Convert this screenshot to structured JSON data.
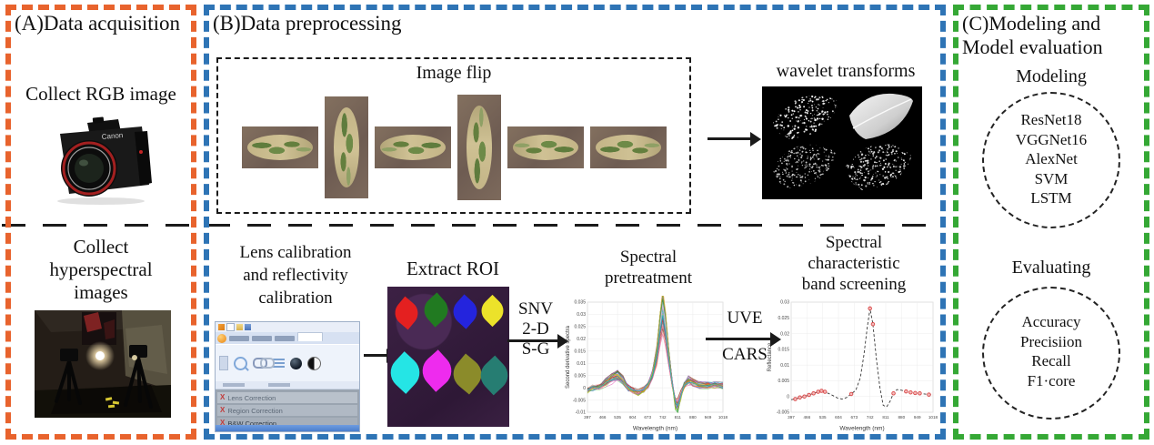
{
  "panel_a": {
    "title": "(A)Data acquisition",
    "rgb_label": "Collect RGB image",
    "camera_brand": "Canon",
    "hyper_label_lines": [
      "Collect",
      "hyperspectral",
      "images"
    ]
  },
  "panel_b": {
    "title": "(B)Data preprocessing",
    "image_flip_label": "Image flip",
    "wavelet_label": "wavelet transforms",
    "lens_cal_lines": [
      "Lens calibration",
      "and reflectivity",
      "calibration"
    ],
    "software": {
      "items": [
        "Lens Correction",
        "Region Correction",
        "B&W Correction"
      ]
    },
    "extract_roi_label": "Extract ROI",
    "snv_lines": [
      "SNV",
      "2-D",
      "S-G"
    ],
    "pretreat_title_lines": [
      "Spectral",
      "pretreatment"
    ],
    "uve": "UVE",
    "cars": "CARS",
    "band_title_lines": [
      "Spectral",
      "characteristic",
      "band screening"
    ]
  },
  "panel_c": {
    "title_lines": [
      "(C)Modeling and",
      "Model evaluation"
    ],
    "modeling_label": "Modeling",
    "models": [
      "ResNet18",
      "VGGNet16",
      "AlexNet",
      "SVM",
      "LSTM"
    ],
    "evaluating_label": "Evaluating",
    "metrics": [
      "Accuracy",
      "Precisiion",
      "Recall",
      "F1·core"
    ]
  },
  "colors": {
    "panel_a_border": "#e8632d",
    "panel_b_border": "#2e74b5",
    "panel_c_border": "#35a835",
    "arrow": "#1a1a1a"
  },
  "chart_data": [
    {
      "type": "line",
      "title": "Spectral pretreatment",
      "xlabel": "Wavelength (nm)",
      "ylabel": "Second derivative spectra",
      "xlim": [
        397,
        1018
      ],
      "ylim": [
        -0.01,
        0.035
      ],
      "x_ticks": [
        397,
        466,
        535,
        604,
        673,
        742,
        811,
        880,
        949,
        1018
      ],
      "y_ticks": [
        0.035,
        0.03,
        0.025,
        0.02,
        0.015,
        0.01,
        0.005,
        0,
        -0.005,
        -0.01
      ],
      "y_tick_labels": [
        "0.035",
        "0.03",
        "0.025",
        "0.02",
        "0.015",
        "0.01",
        "0.005",
        "0",
        "-0.005",
        "-0.01"
      ],
      "grid": true,
      "legend": false,
      "base_x": [
        397,
        420,
        450,
        480,
        510,
        535,
        560,
        585,
        604,
        630,
        655,
        675,
        695,
        715,
        730,
        742,
        755,
        770,
        785,
        800,
        811,
        825,
        840,
        860,
        880,
        910,
        949,
        980,
        1018
      ],
      "base_y": [
        -0.001,
        0.0,
        0.0,
        0.002,
        0.004,
        0.005,
        0.003,
        0.0,
        -0.001,
        -0.002,
        -0.001,
        0.001,
        0.005,
        0.013,
        0.024,
        0.031,
        0.024,
        0.012,
        0.002,
        -0.006,
        -0.007,
        -0.003,
        0.001,
        0.003,
        0.002,
        0.001,
        0.001,
        0.001,
        0.001
      ],
      "n_lines": 40,
      "line_colors": [
        "#d62728",
        "#1f77b4",
        "#2ca02c",
        "#ff7f0e",
        "#9467bd",
        "#8c564b",
        "#e377c2",
        "#7f7f7f",
        "#bcbd22",
        "#17becf",
        "#aec7e8",
        "#ffbb78",
        "#98df8a",
        "#ff9896",
        "#c5b0d5"
      ]
    },
    {
      "type": "line",
      "title": "Spectral characteristic band screening",
      "xlabel": "Wavelength (nm)",
      "ylabel": "Reflectance",
      "xlim": [
        397,
        1018
      ],
      "ylim": [
        -0.005,
        0.03
      ],
      "x_ticks": [
        397,
        466,
        535,
        604,
        673,
        742,
        811,
        880,
        949,
        1018
      ],
      "y_ticks": [
        0.03,
        0.025,
        0.02,
        0.015,
        0.01,
        0.005,
        0,
        -0.005
      ],
      "y_tick_labels": [
        "0.03",
        "0.025",
        "0.02",
        "0.015",
        "0.01",
        "0.005",
        "0",
        "-0.005"
      ],
      "grid": true,
      "legend": false,
      "line_style": "dashed",
      "line_color": "#3a3a3a",
      "marker_color": "#d94646",
      "x": [
        397,
        415,
        435,
        455,
        475,
        495,
        515,
        530,
        545,
        560,
        580,
        600,
        620,
        640,
        660,
        680,
        700,
        715,
        730,
        742,
        755,
        770,
        785,
        800,
        815,
        830,
        845,
        860,
        880,
        900,
        920,
        940,
        960,
        980,
        1000,
        1018
      ],
      "y": [
        -0.001,
        -0.0008,
        -0.0003,
        0.0,
        0.0005,
        0.001,
        0.0015,
        0.0018,
        0.0015,
        0.001,
        0.0003,
        -0.0005,
        -0.0008,
        -0.0003,
        0.0008,
        0.002,
        0.006,
        0.013,
        0.022,
        0.028,
        0.023,
        0.012,
        0.003,
        -0.0028,
        -0.0033,
        -0.0015,
        0.001,
        0.0022,
        0.002,
        0.0016,
        0.0013,
        0.0011,
        0.001,
        0.0008,
        0.0006,
        0.0005
      ],
      "selected_band_x": [
        415,
        435,
        455,
        475,
        495,
        515,
        530,
        545,
        660,
        742,
        755,
        845,
        900,
        920,
        940,
        960,
        1000
      ]
    }
  ]
}
